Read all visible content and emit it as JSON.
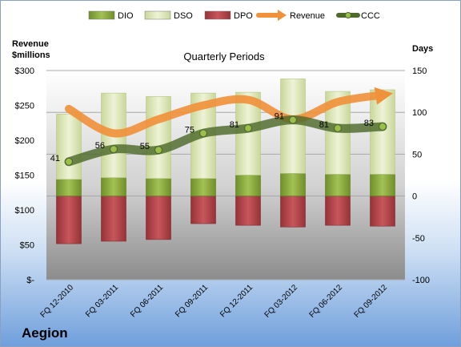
{
  "company": "Aegion",
  "chart_data": {
    "type": "bar",
    "title": "Quarterly Periods",
    "left_axis_label": [
      "Revenue",
      "$millions"
    ],
    "right_axis_label": "Days",
    "categories": [
      "FQ 12-2010",
      "FQ 03-2011",
      "FQ 06-2011",
      "FQ 09-2011",
      "FQ 12-2011",
      "FQ 03-2012",
      "FQ 06-2012",
      "FQ 09-2012"
    ],
    "left_axis": {
      "min": 0,
      "max": 300,
      "step": 50,
      "tick_labels": [
        "$-",
        "$50",
        "$100",
        "$150",
        "$200",
        "$250",
        "$300"
      ]
    },
    "right_axis": {
      "min": -100,
      "max": 150,
      "step": 50,
      "tick_labels": [
        "-100",
        "-50",
        "0",
        "50",
        "100",
        "150"
      ]
    },
    "legend": {
      "placement": "top",
      "entries": [
        {
          "name": "DIO",
          "color": "#8fb23c"
        },
        {
          "name": "DSO",
          "color": "#e4ecc1"
        },
        {
          "name": "DPO",
          "color": "#b84a4f"
        },
        {
          "name": "Revenue",
          "color": "#f0913c"
        },
        {
          "name": "CCC",
          "color": "#4e6a2c"
        }
      ]
    },
    "series": [
      {
        "name": "DIO",
        "axis": "right",
        "values": [
          20,
          22,
          21,
          21,
          25,
          27,
          26,
          26
        ]
      },
      {
        "name": "DSO",
        "axis": "right",
        "values": [
          78,
          101,
          98,
          102,
          99,
          113,
          99,
          101
        ]
      },
      {
        "name": "DPO",
        "axis": "right",
        "values": [
          -57,
          -54,
          -52,
          -33,
          -35,
          -37,
          -35,
          -36
        ]
      },
      {
        "name": "Revenue",
        "axis": "left",
        "values": [
          245,
          210,
          230,
          250,
          258,
          230,
          255,
          265
        ]
      },
      {
        "name": "CCC",
        "axis": "right",
        "values": [
          41,
          56,
          55,
          75,
          81,
          91,
          81,
          83
        ],
        "data_labels": [
          "41",
          "56",
          "55",
          "75",
          "81",
          "91",
          "81",
          "83"
        ]
      }
    ]
  }
}
